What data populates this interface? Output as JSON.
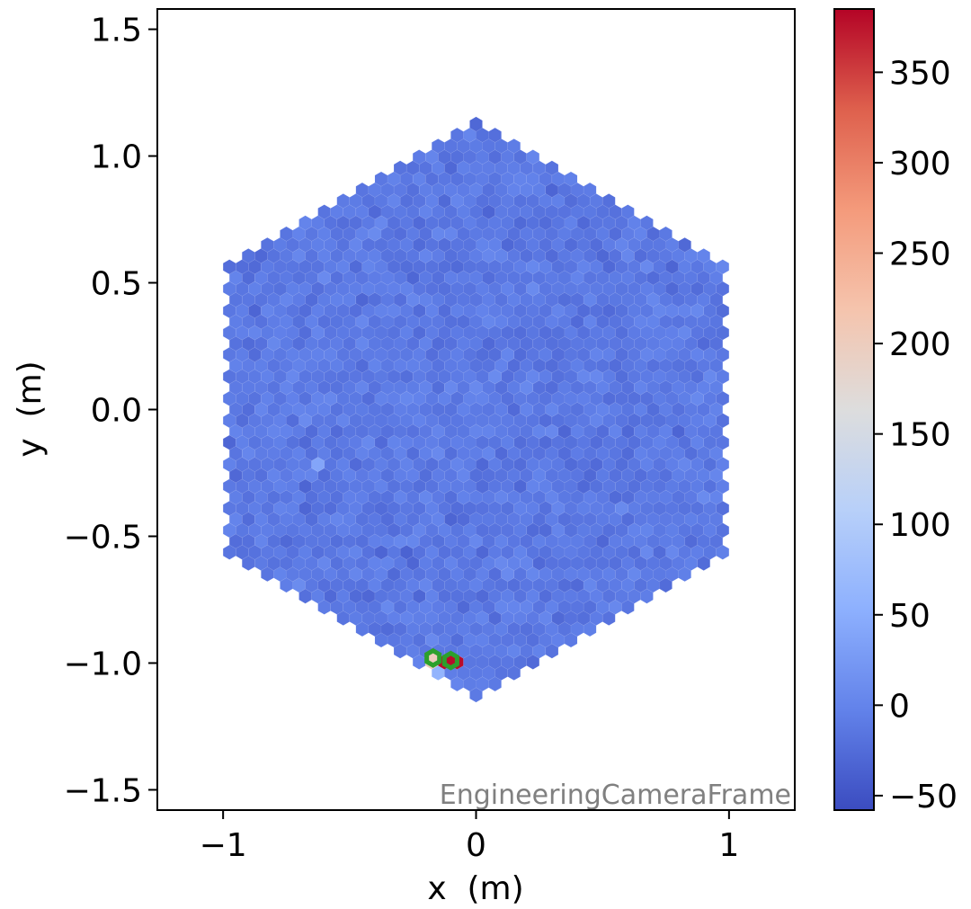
{
  "chart_data": {
    "type": "heatmap",
    "subtype": "hexagonal camera image",
    "title": "",
    "xlabel": "x  (m)",
    "ylabel": "y  (m)",
    "xlim": [
      -1.26,
      1.26
    ],
    "ylim": [
      -1.58,
      1.58
    ],
    "x_ticks": [
      -1,
      0,
      1
    ],
    "x_tick_labels": [
      "−1",
      "0",
      "1"
    ],
    "y_ticks": [
      -1.5,
      -1.0,
      -0.5,
      0.0,
      0.5,
      1.0,
      1.5
    ],
    "y_tick_labels": [
      "−1.5",
      "−1.0",
      "−0.5",
      "0.0",
      "0.5",
      "1.0",
      "1.5"
    ],
    "frame_label": "EngineeringCameraFrame",
    "camera": {
      "shape": "hexagon",
      "circumradius_m": 1.13,
      "pixel_spacing_m": 0.05,
      "background_value_mean": -12,
      "background_value_spread": 16
    },
    "bright_pixels": [
      {
        "x": -0.1,
        "y": -0.99,
        "value": 380,
        "highlighted": true
      },
      {
        "x": -0.17,
        "y": -0.98,
        "value": 200,
        "highlighted": true
      },
      {
        "x": -0.13,
        "y": -1.04,
        "value": 60,
        "highlighted": false
      },
      {
        "x": -0.2,
        "y": -1.04,
        "value": 70,
        "highlighted": false
      },
      {
        "x": -0.13,
        "y": -1.09,
        "value": 75,
        "highlighted": false
      },
      {
        "x": -0.62,
        "y": -0.2,
        "value": 40,
        "highlighted": false
      }
    ],
    "colorbar": {
      "colormap": "coolwarm",
      "min": -58,
      "max": 385,
      "ticks": [
        -50,
        0,
        50,
        100,
        150,
        200,
        250,
        300,
        350
      ],
      "tick_labels": [
        "−50",
        "0",
        "50",
        "100",
        "150",
        "200",
        "250",
        "300",
        "350"
      ]
    },
    "highlight_color": "#2ca02c",
    "frame_label_color": "#808080"
  }
}
